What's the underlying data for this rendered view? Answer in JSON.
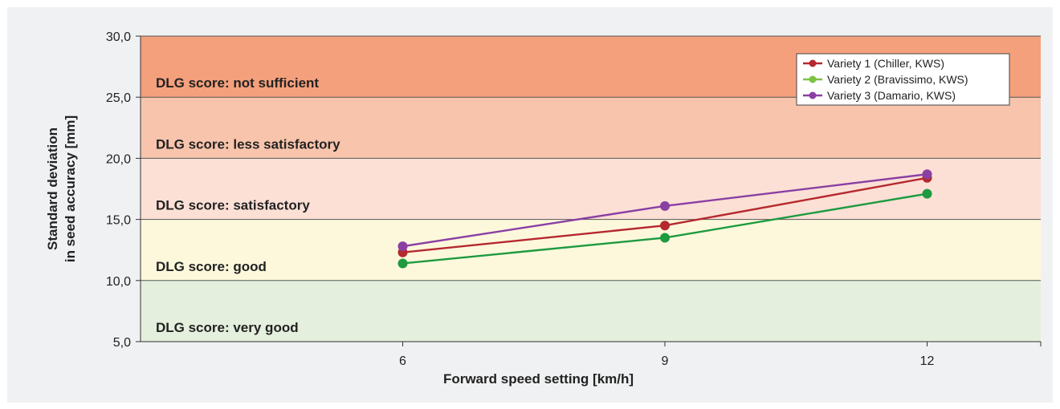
{
  "chart_data": {
    "type": "line",
    "title": "",
    "xlabel": "Forward speed setting [km/h]",
    "ylabel_lines": [
      "Standard deviation",
      "in seed accuracy [mm]"
    ],
    "x": [
      6,
      9,
      12
    ],
    "x_tick_labels": [
      "6",
      "9",
      "12"
    ],
    "xlim": [
      3,
      13.3
    ],
    "ylim": [
      5,
      30
    ],
    "y_ticks": [
      5,
      10,
      15,
      20,
      25,
      30
    ],
    "y_tick_labels": [
      "5,0",
      "10,0",
      "15,0",
      "20,0",
      "25,0",
      "30,0"
    ],
    "bands": [
      {
        "from": 25,
        "to": 30,
        "label": "DLG score: not sufficient",
        "color": "#f5a07c"
      },
      {
        "from": 20,
        "to": 25,
        "label": "DLG score: less satisfactory",
        "color": "#f8c4ac"
      },
      {
        "from": 15,
        "to": 20,
        "label": "DLG score: satisfactory",
        "color": "#fce0d6"
      },
      {
        "from": 10,
        "to": 15,
        "label": "DLG score: good",
        "color": "#fdf8dc"
      },
      {
        "from": 5,
        "to": 10,
        "label": "DLG score: very good",
        "color": "#e4efdd"
      }
    ],
    "series": [
      {
        "name": "Variety 1 (Chiller, KWS)",
        "color": "#b5282e",
        "values": [
          12.3,
          14.5,
          18.4
        ]
      },
      {
        "name": "Variety 2 (Bravissimo, KWS)",
        "color": "#1e9a3f",
        "values": [
          11.4,
          13.5,
          17.1
        ]
      },
      {
        "name": "Variety 3 (Damario, KWS)",
        "color": "#8a3fa3",
        "values": [
          12.8,
          16.1,
          18.7
        ]
      }
    ],
    "legend_position": "top-right",
    "legend_marker_colors": [
      "#b5282e",
      "#7cc242",
      "#8a3fa3"
    ]
  }
}
